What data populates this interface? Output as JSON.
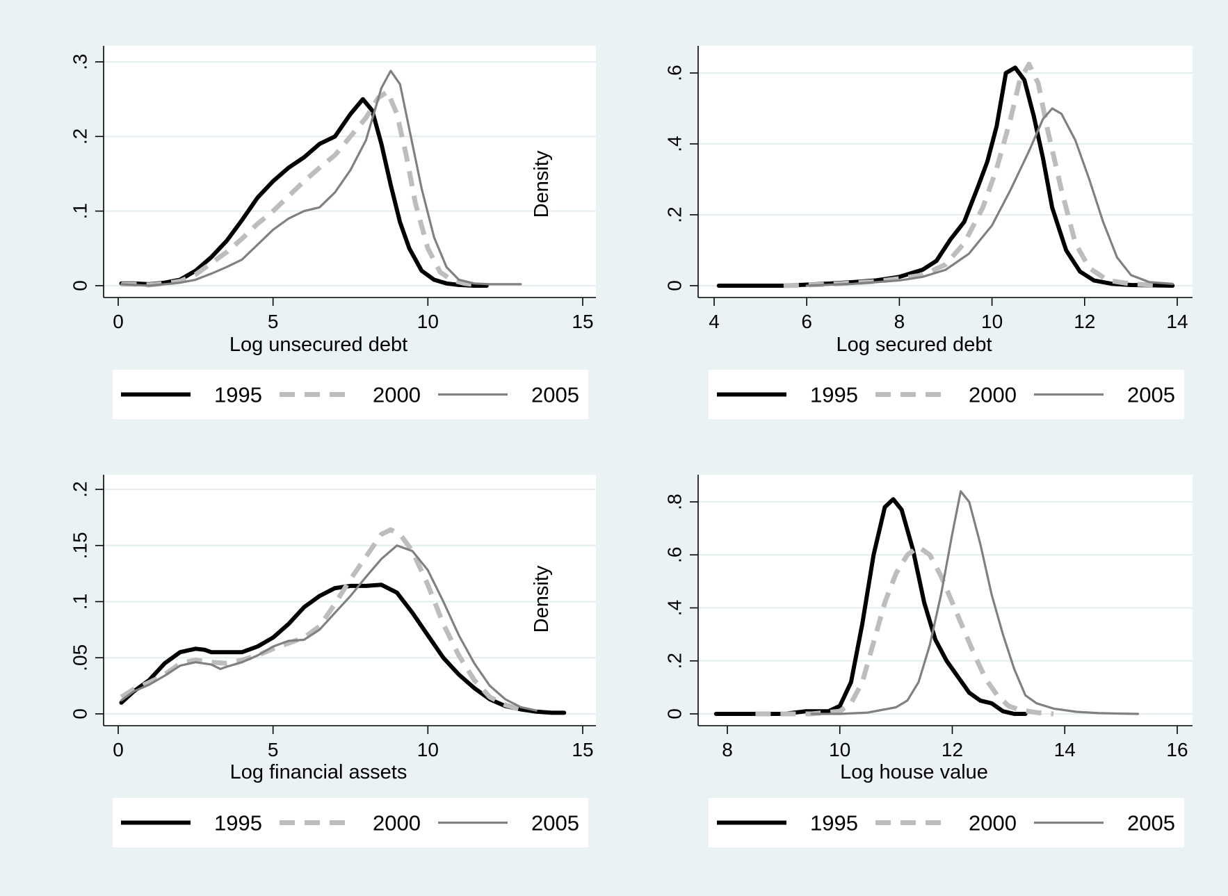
{
  "figure": {
    "background": "#eaf2f3",
    "plot_background": "#ffffff"
  },
  "series_styles": [
    {
      "name": "1995",
      "color": "#000000",
      "width": 6,
      "dash": ""
    },
    {
      "name": "2000",
      "color": "#bdbdbd",
      "width": 7,
      "dash": "22 14"
    },
    {
      "name": "2005",
      "color": "#808080",
      "width": 3.2,
      "dash": ""
    }
  ],
  "chart_data": [
    {
      "type": "line",
      "xlabel": "Log unsecured debt",
      "ylabel": "Density",
      "xlim": [
        0,
        15
      ],
      "ylim": [
        0,
        0.3
      ],
      "xticks": [
        0,
        5,
        10,
        15
      ],
      "xtick_labels": [
        "0",
        "5",
        "10",
        "15"
      ],
      "yticks": [
        0,
        0.1,
        0.2,
        0.3
      ],
      "ytick_labels": [
        "0",
        ".1",
        ".2",
        ".3"
      ],
      "grid": true,
      "legend": {
        "position": "bottom",
        "entries": [
          "1995",
          "2000",
          "2005"
        ]
      },
      "series": [
        {
          "name": "1995",
          "x": [
            0.1,
            0.5,
            1.0,
            1.5,
            2.0,
            2.5,
            3.0,
            3.5,
            4.0,
            4.5,
            5.0,
            5.5,
            6.0,
            6.5,
            7.0,
            7.5,
            7.9,
            8.2,
            8.5,
            8.8,
            9.1,
            9.4,
            9.8,
            10.2,
            10.6,
            11.0,
            11.5,
            11.9
          ],
          "y": [
            0.003,
            0.003,
            0.002,
            0.004,
            0.008,
            0.02,
            0.038,
            0.06,
            0.088,
            0.118,
            0.14,
            0.158,
            0.172,
            0.19,
            0.2,
            0.23,
            0.25,
            0.235,
            0.19,
            0.135,
            0.085,
            0.05,
            0.02,
            0.008,
            0.003,
            0.001,
            0.0,
            0.0
          ]
        },
        {
          "name": "2000",
          "x": [
            0.1,
            0.5,
            1.0,
            1.5,
            2.0,
            2.5,
            3.0,
            3.5,
            4.0,
            4.5,
            5.0,
            5.5,
            6.0,
            6.5,
            7.0,
            7.5,
            8.0,
            8.4,
            8.7,
            9.0,
            9.3,
            9.6,
            10.0,
            10.4,
            10.8,
            11.2,
            11.6
          ],
          "y": [
            0.002,
            0.002,
            0.001,
            0.003,
            0.006,
            0.015,
            0.03,
            0.045,
            0.063,
            0.083,
            0.1,
            0.12,
            0.14,
            0.158,
            0.175,
            0.2,
            0.225,
            0.252,
            0.26,
            0.23,
            0.175,
            0.11,
            0.05,
            0.018,
            0.007,
            0.003,
            0.001
          ]
        },
        {
          "name": "2005",
          "x": [
            0.1,
            0.5,
            1.0,
            1.5,
            2.0,
            2.5,
            3.0,
            3.5,
            4.0,
            4.5,
            5.0,
            5.5,
            6.0,
            6.5,
            7.0,
            7.5,
            8.0,
            8.5,
            8.8,
            9.1,
            9.4,
            9.8,
            10.2,
            10.6,
            11.0,
            11.5,
            12.0,
            12.5,
            13.0
          ],
          "y": [
            0.002,
            0.001,
            0.0,
            0.002,
            0.004,
            0.008,
            0.016,
            0.025,
            0.035,
            0.055,
            0.075,
            0.09,
            0.1,
            0.105,
            0.125,
            0.155,
            0.195,
            0.265,
            0.288,
            0.27,
            0.21,
            0.13,
            0.065,
            0.025,
            0.008,
            0.003,
            0.002,
            0.002,
            0.002
          ]
        }
      ]
    },
    {
      "type": "line",
      "xlabel": "Log secured debt",
      "ylabel": "",
      "xlim": [
        4,
        14
      ],
      "ylim": [
        0,
        0.6
      ],
      "xticks": [
        4,
        6,
        8,
        10,
        12,
        14
      ],
      "xtick_labels": [
        "4",
        "6",
        "8",
        "10",
        "12",
        "14"
      ],
      "yticks": [
        0,
        0.2,
        0.4,
        0.6
      ],
      "ytick_labels": [
        "0",
        ".2",
        ".4",
        ".6"
      ],
      "grid": true,
      "legend": {
        "position": "bottom",
        "entries": [
          "1995",
          "2000",
          "2005"
        ]
      },
      "series": [
        {
          "name": "1995",
          "x": [
            4.1,
            4.5,
            5.0,
            5.5,
            6.0,
            6.5,
            7.0,
            7.5,
            8.0,
            8.5,
            8.8,
            9.1,
            9.4,
            9.7,
            9.9,
            10.1,
            10.3,
            10.5,
            10.7,
            10.9,
            11.1,
            11.3,
            11.6,
            11.9,
            12.2,
            12.6,
            13.0,
            13.5,
            13.9
          ],
          "y": [
            0.0,
            0.0,
            0.0,
            0.0,
            0.003,
            0.006,
            0.01,
            0.015,
            0.025,
            0.045,
            0.07,
            0.13,
            0.18,
            0.28,
            0.35,
            0.45,
            0.6,
            0.615,
            0.58,
            0.48,
            0.36,
            0.22,
            0.1,
            0.04,
            0.015,
            0.005,
            0.002,
            0.001,
            0.0
          ]
        },
        {
          "name": "2000",
          "x": [
            5.5,
            6.0,
            6.5,
            7.0,
            7.5,
            8.0,
            8.5,
            9.0,
            9.4,
            9.8,
            10.1,
            10.4,
            10.6,
            10.8,
            11.0,
            11.2,
            11.5,
            11.8,
            12.1,
            12.5,
            13.0,
            13.5
          ],
          "y": [
            0.0,
            0.002,
            0.004,
            0.008,
            0.012,
            0.02,
            0.03,
            0.06,
            0.12,
            0.22,
            0.33,
            0.47,
            0.58,
            0.625,
            0.57,
            0.44,
            0.27,
            0.12,
            0.05,
            0.015,
            0.005,
            0.002
          ]
        },
        {
          "name": "2005",
          "x": [
            6.0,
            6.5,
            7.0,
            7.5,
            8.0,
            8.5,
            9.0,
            9.5,
            10.0,
            10.4,
            10.8,
            11.1,
            11.3,
            11.5,
            11.8,
            12.1,
            12.4,
            12.7,
            13.0,
            13.4,
            13.9
          ],
          "y": [
            0.0,
            0.003,
            0.005,
            0.01,
            0.015,
            0.025,
            0.045,
            0.09,
            0.17,
            0.27,
            0.38,
            0.47,
            0.5,
            0.485,
            0.41,
            0.3,
            0.18,
            0.08,
            0.03,
            0.01,
            0.005
          ]
        }
      ]
    },
    {
      "type": "line",
      "xlabel": "Log financial assets",
      "ylabel": "Density",
      "xlim": [
        0,
        15
      ],
      "ylim": [
        0,
        0.2
      ],
      "xticks": [
        0,
        5,
        10,
        15
      ],
      "xtick_labels": [
        "0",
        "5",
        "10",
        "15"
      ],
      "yticks": [
        0,
        0.05,
        0.1,
        0.15,
        0.2
      ],
      "ytick_labels": [
        "0",
        ".05",
        ".1",
        ".15",
        ".2"
      ],
      "grid": true,
      "legend": {
        "position": "bottom",
        "entries": [
          "1995",
          "2000",
          "2005"
        ]
      },
      "series": [
        {
          "name": "1995",
          "x": [
            0.1,
            0.5,
            1.0,
            1.5,
            2.0,
            2.5,
            2.8,
            3.0,
            3.5,
            4.0,
            4.5,
            5.0,
            5.5,
            6.0,
            6.5,
            7.0,
            7.5,
            8.0,
            8.5,
            9.0,
            9.5,
            10.0,
            10.5,
            11.0,
            11.5,
            12.0,
            12.5,
            13.0,
            13.5,
            14.0,
            14.4
          ],
          "y": [
            0.01,
            0.02,
            0.03,
            0.045,
            0.055,
            0.058,
            0.057,
            0.055,
            0.055,
            0.055,
            0.06,
            0.068,
            0.08,
            0.095,
            0.105,
            0.112,
            0.114,
            0.114,
            0.115,
            0.108,
            0.09,
            0.07,
            0.05,
            0.035,
            0.023,
            0.013,
            0.007,
            0.004,
            0.002,
            0.001,
            0.001
          ]
        },
        {
          "name": "2000",
          "x": [
            0.1,
            0.5,
            1.0,
            1.5,
            2.0,
            2.5,
            3.0,
            3.5,
            4.0,
            4.5,
            5.0,
            5.5,
            6.0,
            6.5,
            7.0,
            7.5,
            8.0,
            8.5,
            8.8,
            9.1,
            9.5,
            10.0,
            10.5,
            11.0,
            11.5,
            12.0,
            12.5,
            13.0
          ],
          "y": [
            0.015,
            0.022,
            0.028,
            0.035,
            0.045,
            0.048,
            0.046,
            0.045,
            0.048,
            0.052,
            0.058,
            0.063,
            0.068,
            0.078,
            0.098,
            0.12,
            0.14,
            0.16,
            0.164,
            0.16,
            0.145,
            0.115,
            0.08,
            0.052,
            0.03,
            0.015,
            0.008,
            0.004
          ]
        },
        {
          "name": "2005",
          "x": [
            0.1,
            0.5,
            1.0,
            1.5,
            2.0,
            2.5,
            3.0,
            3.3,
            3.5,
            4.0,
            4.5,
            5.0,
            5.5,
            6.0,
            6.5,
            7.0,
            7.5,
            8.0,
            8.5,
            9.0,
            9.5,
            10.0,
            10.5,
            11.0,
            11.5,
            12.0,
            12.5,
            13.0,
            13.5
          ],
          "y": [
            0.012,
            0.02,
            0.026,
            0.034,
            0.043,
            0.046,
            0.044,
            0.04,
            0.042,
            0.046,
            0.052,
            0.06,
            0.065,
            0.066,
            0.075,
            0.09,
            0.105,
            0.122,
            0.138,
            0.15,
            0.145,
            0.128,
            0.1,
            0.07,
            0.045,
            0.025,
            0.013,
            0.006,
            0.003
          ]
        }
      ]
    },
    {
      "type": "line",
      "xlabel": "Log house value",
      "ylabel": "",
      "xlim": [
        8,
        16
      ],
      "ylim": [
        0,
        0.8
      ],
      "xticks": [
        8,
        10,
        12,
        14,
        16
      ],
      "xtick_labels": [
        "8",
        "10",
        "12",
        "14",
        "16"
      ],
      "yticks": [
        0,
        0.2,
        0.4,
        0.6,
        0.8
      ],
      "ytick_labels": [
        "0",
        ".2",
        ".4",
        ".6",
        ".8"
      ],
      "grid": true,
      "legend": {
        "position": "bottom",
        "entries": [
          "1995",
          "2000",
          "2005"
        ]
      },
      "series": [
        {
          "name": "1995",
          "x": [
            7.8,
            8.5,
            9.0,
            9.4,
            9.8,
            10.0,
            10.2,
            10.4,
            10.6,
            10.8,
            10.95,
            11.1,
            11.3,
            11.5,
            11.7,
            11.9,
            12.1,
            12.3,
            12.5,
            12.7,
            12.9,
            13.1,
            13.3
          ],
          "y": [
            0.0,
            0.0,
            0.0,
            0.01,
            0.01,
            0.03,
            0.12,
            0.34,
            0.6,
            0.78,
            0.81,
            0.77,
            0.62,
            0.42,
            0.28,
            0.2,
            0.14,
            0.08,
            0.05,
            0.04,
            0.01,
            0.0,
            0.0
          ]
        },
        {
          "name": "2000",
          "x": [
            8.5,
            9.0,
            9.5,
            10.0,
            10.2,
            10.4,
            10.6,
            10.8,
            11.0,
            11.2,
            11.4,
            11.6,
            11.8,
            12.0,
            12.2,
            12.4,
            12.6,
            12.8,
            13.0,
            13.2,
            13.5,
            13.8
          ],
          "y": [
            0.0,
            0.0,
            0.0,
            0.01,
            0.04,
            0.12,
            0.27,
            0.42,
            0.53,
            0.6,
            0.63,
            0.6,
            0.52,
            0.42,
            0.32,
            0.22,
            0.13,
            0.07,
            0.03,
            0.015,
            0.005,
            0.0
          ]
        },
        {
          "name": "2005",
          "x": [
            9.5,
            10.0,
            10.5,
            11.0,
            11.2,
            11.4,
            11.6,
            11.8,
            12.0,
            12.15,
            12.3,
            12.5,
            12.7,
            12.9,
            13.1,
            13.3,
            13.5,
            13.8,
            14.2,
            14.6,
            15.0,
            15.3
          ],
          "y": [
            0.0,
            0.0,
            0.005,
            0.025,
            0.05,
            0.12,
            0.26,
            0.45,
            0.68,
            0.84,
            0.8,
            0.64,
            0.45,
            0.3,
            0.17,
            0.07,
            0.04,
            0.02,
            0.008,
            0.003,
            0.001,
            0.0
          ]
        }
      ]
    }
  ]
}
